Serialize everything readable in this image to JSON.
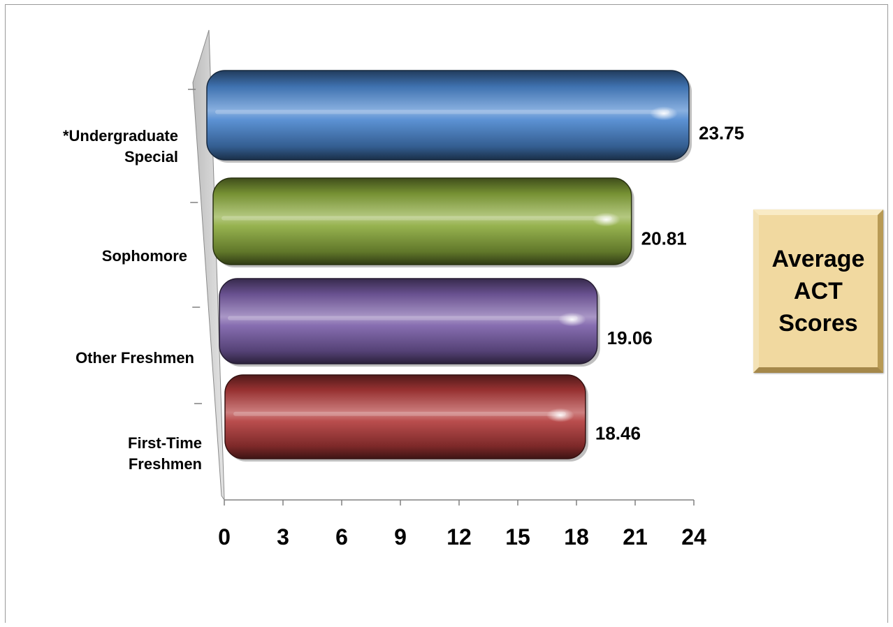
{
  "chart_data": {
    "type": "bar",
    "orientation": "horizontal",
    "title": "Average\nACT\nScores",
    "categories": [
      "*Undergraduate Special",
      "Sophomore",
      "Other Freshmen",
      "First-Time Freshmen"
    ],
    "category_labels": [
      [
        "*Undergraduate",
        "Special"
      ],
      [
        "Sophomore"
      ],
      [
        "Other Freshmen"
      ],
      [
        "First-Time",
        "Freshmen"
      ]
    ],
    "values": [
      23.75,
      20.81,
      19.06,
      18.46
    ],
    "value_labels": [
      "23.75",
      "20.81",
      "19.06",
      "18.46"
    ],
    "colors": [
      "#4a86cf",
      "#8bab3c",
      "#7a5ea8",
      "#b23a3a"
    ],
    "xlim": [
      0,
      24
    ],
    "x_ticks": [
      "0",
      "3",
      "6",
      "9",
      "12",
      "15",
      "18",
      "21",
      "24"
    ],
    "xlabel": "",
    "ylabel": "",
    "grid": false,
    "legend": "none"
  }
}
